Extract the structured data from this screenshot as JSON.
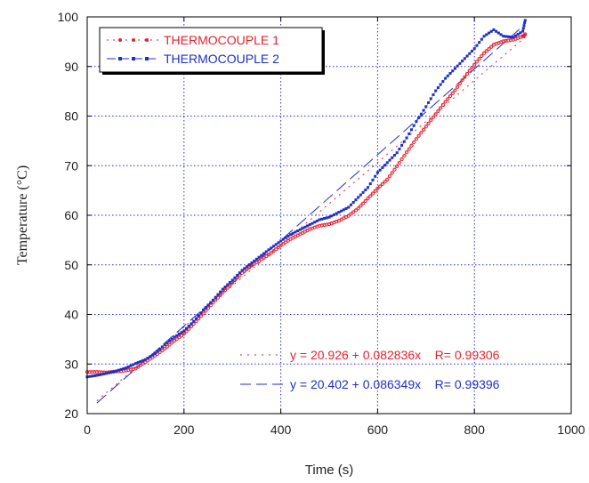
{
  "chart_data": {
    "type": "scatter",
    "xlabel": "Time (s)",
    "ylabel": "Temperature (°C)",
    "xlim": [
      0,
      1000
    ],
    "ylim": [
      20,
      100
    ],
    "xticks": [
      0,
      200,
      400,
      600,
      800,
      1000
    ],
    "yticks": [
      20,
      30,
      40,
      50,
      60,
      70,
      80,
      90,
      100
    ],
    "grid": true,
    "legend_position": "top-left",
    "series": [
      {
        "name": "THERMOCOUPLE 1",
        "color": "#e8202a",
        "marker": "circle",
        "fit_line_style": "dotted",
        "fit_text": "y = 20.926 + 0.082836x    R= 0.99306",
        "fit": {
          "intercept": 20.926,
          "slope": 0.082836
        },
        "x": [
          0,
          20,
          40,
          60,
          80,
          100,
          120,
          140,
          160,
          180,
          200,
          220,
          240,
          260,
          280,
          300,
          320,
          340,
          360,
          380,
          400,
          420,
          440,
          460,
          480,
          500,
          520,
          540,
          560,
          580,
          600,
          620,
          640,
          660,
          680,
          700,
          720,
          740,
          760,
          780,
          800,
          820,
          840,
          860,
          880,
          900,
          905
        ],
        "y": [
          28.5,
          28.5,
          28.4,
          28.6,
          28.8,
          29.2,
          30.5,
          31.8,
          33.2,
          34.8,
          36.2,
          38.2,
          40.3,
          42.5,
          44.5,
          46.5,
          48.5,
          50.0,
          51.2,
          52.5,
          54.0,
          55.3,
          56.3,
          57.3,
          58.0,
          58.3,
          59.0,
          60.0,
          61.5,
          63.5,
          65.5,
          67.3,
          70.0,
          72.8,
          75.5,
          78.0,
          80.5,
          83.0,
          85.3,
          88.0,
          90.5,
          92.8,
          94.5,
          95.2,
          95.5,
          96.2,
          96.5
        ]
      },
      {
        "name": "THERMOCOUPLE 2",
        "color": "#1f2fc8",
        "marker": "square",
        "fit_line_style": "dashed",
        "fit_text": "y = 20.402 + 0.086349x    R= 0.99396",
        "fit": {
          "intercept": 20.402,
          "slope": 0.086349
        },
        "x": [
          0,
          20,
          40,
          60,
          80,
          100,
          120,
          140,
          160,
          180,
          200,
          220,
          240,
          260,
          280,
          300,
          320,
          340,
          360,
          380,
          400,
          420,
          440,
          460,
          480,
          500,
          520,
          540,
          560,
          580,
          600,
          620,
          640,
          660,
          680,
          700,
          720,
          740,
          760,
          780,
          800,
          820,
          840,
          860,
          880,
          900,
          905
        ],
        "y": [
          27.3,
          27.6,
          28.0,
          28.5,
          29.1,
          30.0,
          30.8,
          32.0,
          33.8,
          35.3,
          36.6,
          38.5,
          40.8,
          42.8,
          45.0,
          46.8,
          48.8,
          50.3,
          51.8,
          53.3,
          54.7,
          56.0,
          57.0,
          58.0,
          59.0,
          59.5,
          60.5,
          61.5,
          63.5,
          65.5,
          68.5,
          70.5,
          72.5,
          75.5,
          78.8,
          81.8,
          85.0,
          87.5,
          89.5,
          91.5,
          93.5,
          96.0,
          97.3,
          96.0,
          95.8,
          97.0,
          99.3
        ]
      }
    ]
  }
}
